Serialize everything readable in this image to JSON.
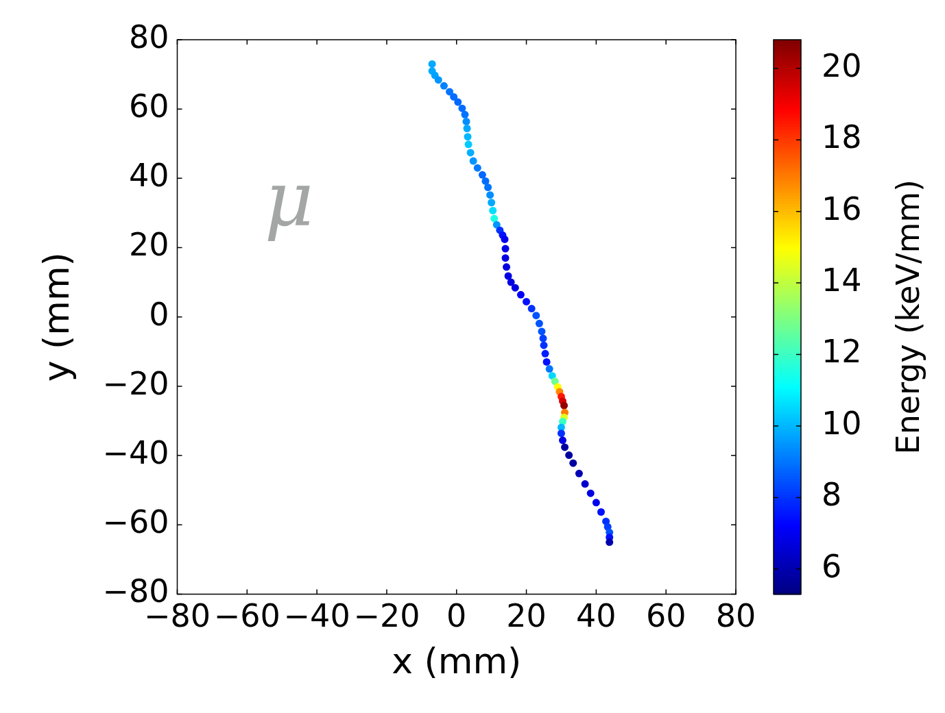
{
  "chart_data": {
    "type": "scatter",
    "xlabel": "x (mm)",
    "ylabel": "y (mm)",
    "clabel": "Energy (keV/mm)",
    "xlim": [
      -80,
      80
    ],
    "xticks": [
      -80,
      -60,
      -40,
      -20,
      0,
      20,
      40,
      60,
      80
    ],
    "ylim": [
      -80,
      80
    ],
    "yticks": [
      -80,
      -60,
      -40,
      -20,
      0,
      20,
      40,
      60,
      80
    ],
    "clim": [
      5.3,
      20.8
    ],
    "cticks": [
      6,
      8,
      10,
      12,
      14,
      16,
      18,
      20
    ],
    "grid": false,
    "legend": false,
    "marker": "circle",
    "annotations": [
      "μ"
    ],
    "series": [
      {
        "x": [
          -7,
          -7,
          -6.2,
          -5.2,
          -3.6,
          -2,
          -0.8,
          0.4,
          1.6,
          2.4,
          2.8,
          3,
          3.2,
          3.4,
          4,
          4.8,
          6,
          7.4,
          8.3,
          9,
          9.6,
          10,
          10.4,
          10.8,
          11.5,
          12.4,
          13.2,
          13.8,
          14,
          14,
          14.3,
          14.8,
          15.6,
          16.8,
          18.4,
          20,
          21.5,
          22.8,
          23.7,
          24.4,
          24.8,
          25,
          25.4,
          25.8,
          26.6,
          27.4,
          28.2,
          29,
          29.5,
          30,
          30.4,
          30.8,
          31,
          30.8,
          30.4,
          30,
          30,
          30.4,
          31,
          32.2,
          33.4,
          35.1,
          36.8,
          38.4,
          40,
          41.4,
          42.8,
          43.3,
          43.8,
          43.8,
          43.8
        ],
        "values": [
          73,
          71,
          69.7,
          68.4,
          66.7,
          65,
          63.5,
          62,
          60.2,
          58.4,
          56.4,
          54.4,
          52,
          49.8,
          47.4,
          45,
          43,
          41,
          39.2,
          37.4,
          35.2,
          33,
          30.7,
          28.4,
          26.6,
          25,
          23.6,
          22.4,
          19.7,
          17,
          14.4,
          11.8,
          10,
          8.4,
          6.4,
          4.4,
          2.4,
          0.4,
          -1.9,
          -4.2,
          -6.2,
          -8.2,
          -10.6,
          -13,
          -15,
          -17,
          -18.6,
          -20.2,
          -21.6,
          -23,
          -24.3,
          -25.6,
          -27.6,
          -29,
          -30.2,
          -31.9,
          -33.6,
          -35.6,
          -37.6,
          -39.9,
          -42.2,
          -45.2,
          -48.2,
          -50.9,
          -53.6,
          -56.3,
          -59,
          -60.6,
          -62.2,
          -63.6,
          -65
        ],
        "cvalues": [
          9.8,
          9.8,
          9.7,
          9.5,
          9.2,
          9,
          8.9,
          8.8,
          8.9,
          9,
          9.4,
          9.8,
          10,
          10.3,
          9.9,
          9.5,
          9.1,
          8.8,
          8.9,
          9,
          9.4,
          9.8,
          10.6,
          11.5,
          9.5,
          8,
          7.5,
          7,
          6.9,
          6.8,
          6.8,
          6.8,
          6.8,
          6.8,
          7.1,
          7.5,
          8,
          8.5,
          8.5,
          8.5,
          8.2,
          8,
          7.7,
          7.5,
          9,
          10.5,
          12.8,
          15,
          16.8,
          18.5,
          19.5,
          20.5,
          17,
          14.5,
          12,
          10,
          8,
          6.8,
          5.8,
          5.8,
          5.8,
          6.1,
          6.5,
          6.8,
          7,
          7.5,
          8,
          8.2,
          8.5,
          7.5,
          6
        ]
      }
    ]
  }
}
